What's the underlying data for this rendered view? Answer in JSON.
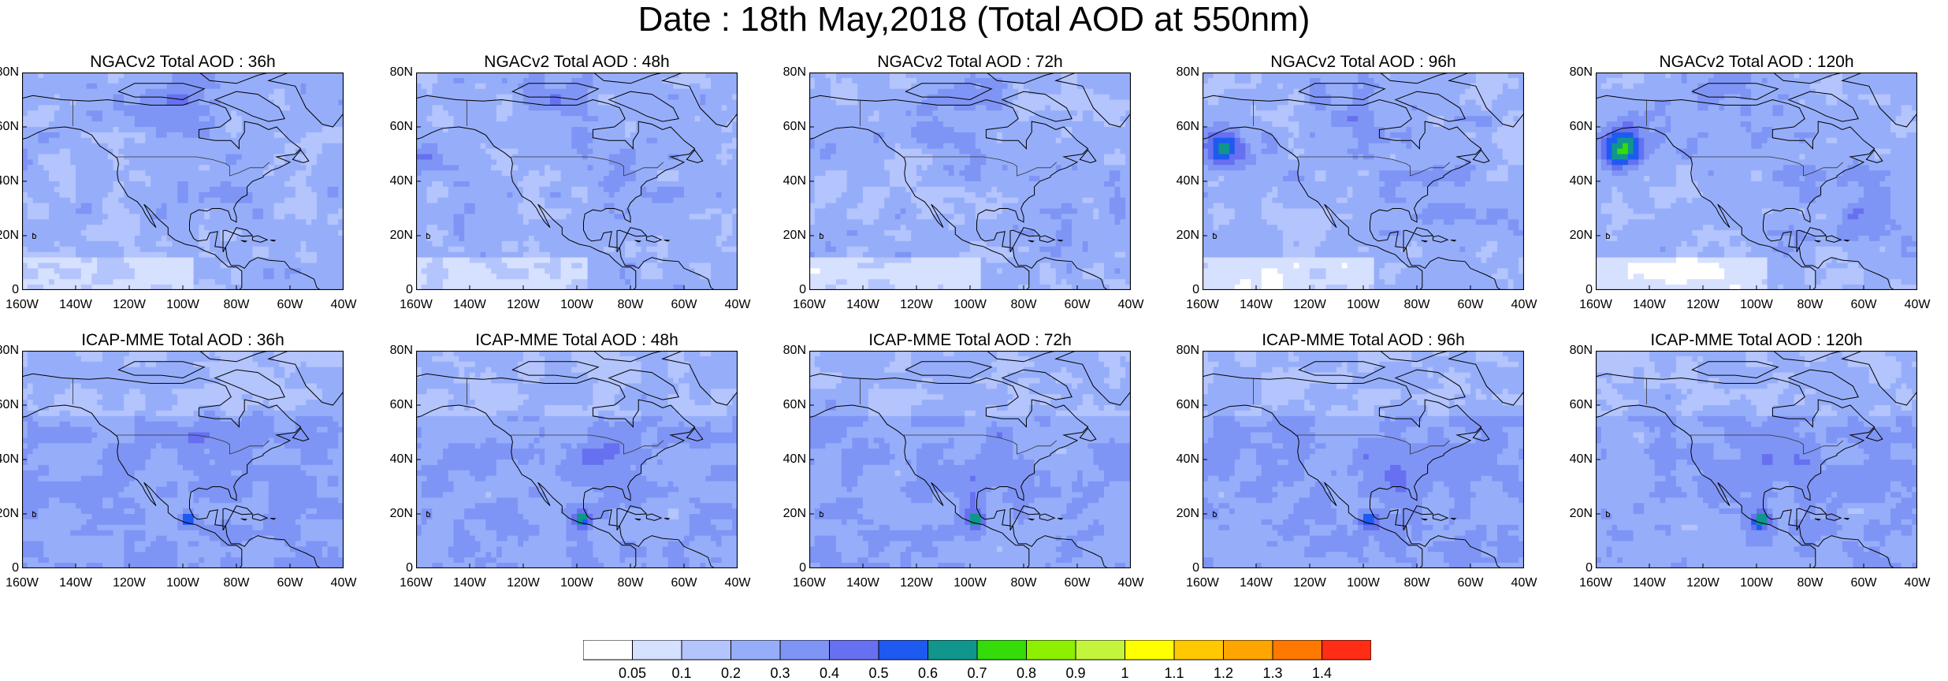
{
  "title": "Date : 18th May,2018 (Total AOD at 550nm)",
  "panels": [
    {
      "title": "NGACv2 Total AOD : 36h"
    },
    {
      "title": "NGACv2 Total AOD : 48h"
    },
    {
      "title": "NGACv2 Total AOD : 72h"
    },
    {
      "title": "NGACv2 Total AOD : 96h"
    },
    {
      "title": "NGACv2 Total AOD : 120h"
    },
    {
      "title": "ICAP-MME Total AOD : 36h"
    },
    {
      "title": "ICAP-MME Total AOD : 48h"
    },
    {
      "title": "ICAP-MME Total AOD : 72h"
    },
    {
      "title": "ICAP-MME Total AOD : 96h"
    },
    {
      "title": "ICAP-MME Total AOD : 120h"
    }
  ],
  "axes": {
    "lat_labels": [
      "80N",
      "60N",
      "40N",
      "20N",
      "0"
    ],
    "lon_labels": [
      "160W",
      "140W",
      "120W",
      "100W",
      "80W",
      "60W",
      "40W"
    ]
  },
  "colorbar": {
    "labels": [
      "0.05",
      "0.1",
      "0.2",
      "0.3",
      "0.4",
      "0.5",
      "0.6",
      "0.7",
      "0.8",
      "0.9",
      "1",
      "1.1",
      "1.2",
      "1.3",
      "1.4"
    ],
    "colors": [
      "#ffffff",
      "#d6e0ff",
      "#b4c4fc",
      "#96aefa",
      "#7f95f5",
      "#6670f0",
      "#1e5af0",
      "#10968c",
      "#34dc0a",
      "#8cf000",
      "#c4f53c",
      "#ffff00",
      "#ffc800",
      "#ffa500",
      "#ff7800",
      "#ff2d14"
    ]
  }
}
